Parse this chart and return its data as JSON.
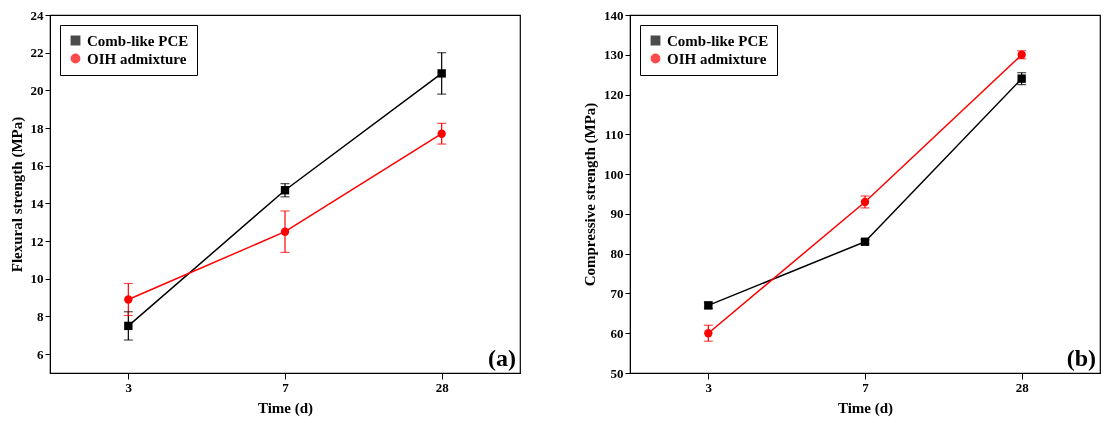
{
  "chart_data": [
    {
      "type": "line",
      "xlabel": "Time (d)",
      "ylabel": "Flexural strength (MPa)",
      "categories": [
        "3",
        "7",
        "28"
      ],
      "ylim": [
        5,
        24
      ],
      "yticks": [
        6,
        8,
        10,
        12,
        14,
        16,
        18,
        20,
        22,
        24
      ],
      "legend": "top left",
      "grid": false,
      "annotations": [
        "(a)"
      ],
      "series": [
        {
          "name": "Comb-like PCE",
          "color": "#000000",
          "marker": "square",
          "values": [
            7.5,
            14.7,
            20.9
          ],
          "errors": [
            0.75,
            0.35,
            1.1
          ]
        },
        {
          "name": "OIH admixture",
          "color": "#ff0000",
          "marker": "circle",
          "values": [
            8.9,
            12.5,
            17.7
          ],
          "errors": [
            0.85,
            1.1,
            0.55
          ]
        }
      ]
    },
    {
      "type": "line",
      "xlabel": "Time (d)",
      "ylabel": "Compressive strength (MPa)",
      "categories": [
        "3",
        "7",
        "28"
      ],
      "ylim": [
        50,
        140
      ],
      "yticks": [
        50,
        60,
        70,
        80,
        90,
        100,
        110,
        120,
        130,
        140
      ],
      "legend": "top left",
      "grid": false,
      "annotations": [
        "(b)"
      ],
      "series": [
        {
          "name": "Comb-like PCE",
          "color": "#000000",
          "marker": "square",
          "values": [
            67,
            83,
            124
          ],
          "errors": [
            0.8,
            0.5,
            1.5
          ]
        },
        {
          "name": "OIH admixture",
          "color": "#ff0000",
          "marker": "circle",
          "values": [
            60,
            93,
            130
          ],
          "errors": [
            2,
            1.5,
            1
          ]
        }
      ]
    }
  ]
}
